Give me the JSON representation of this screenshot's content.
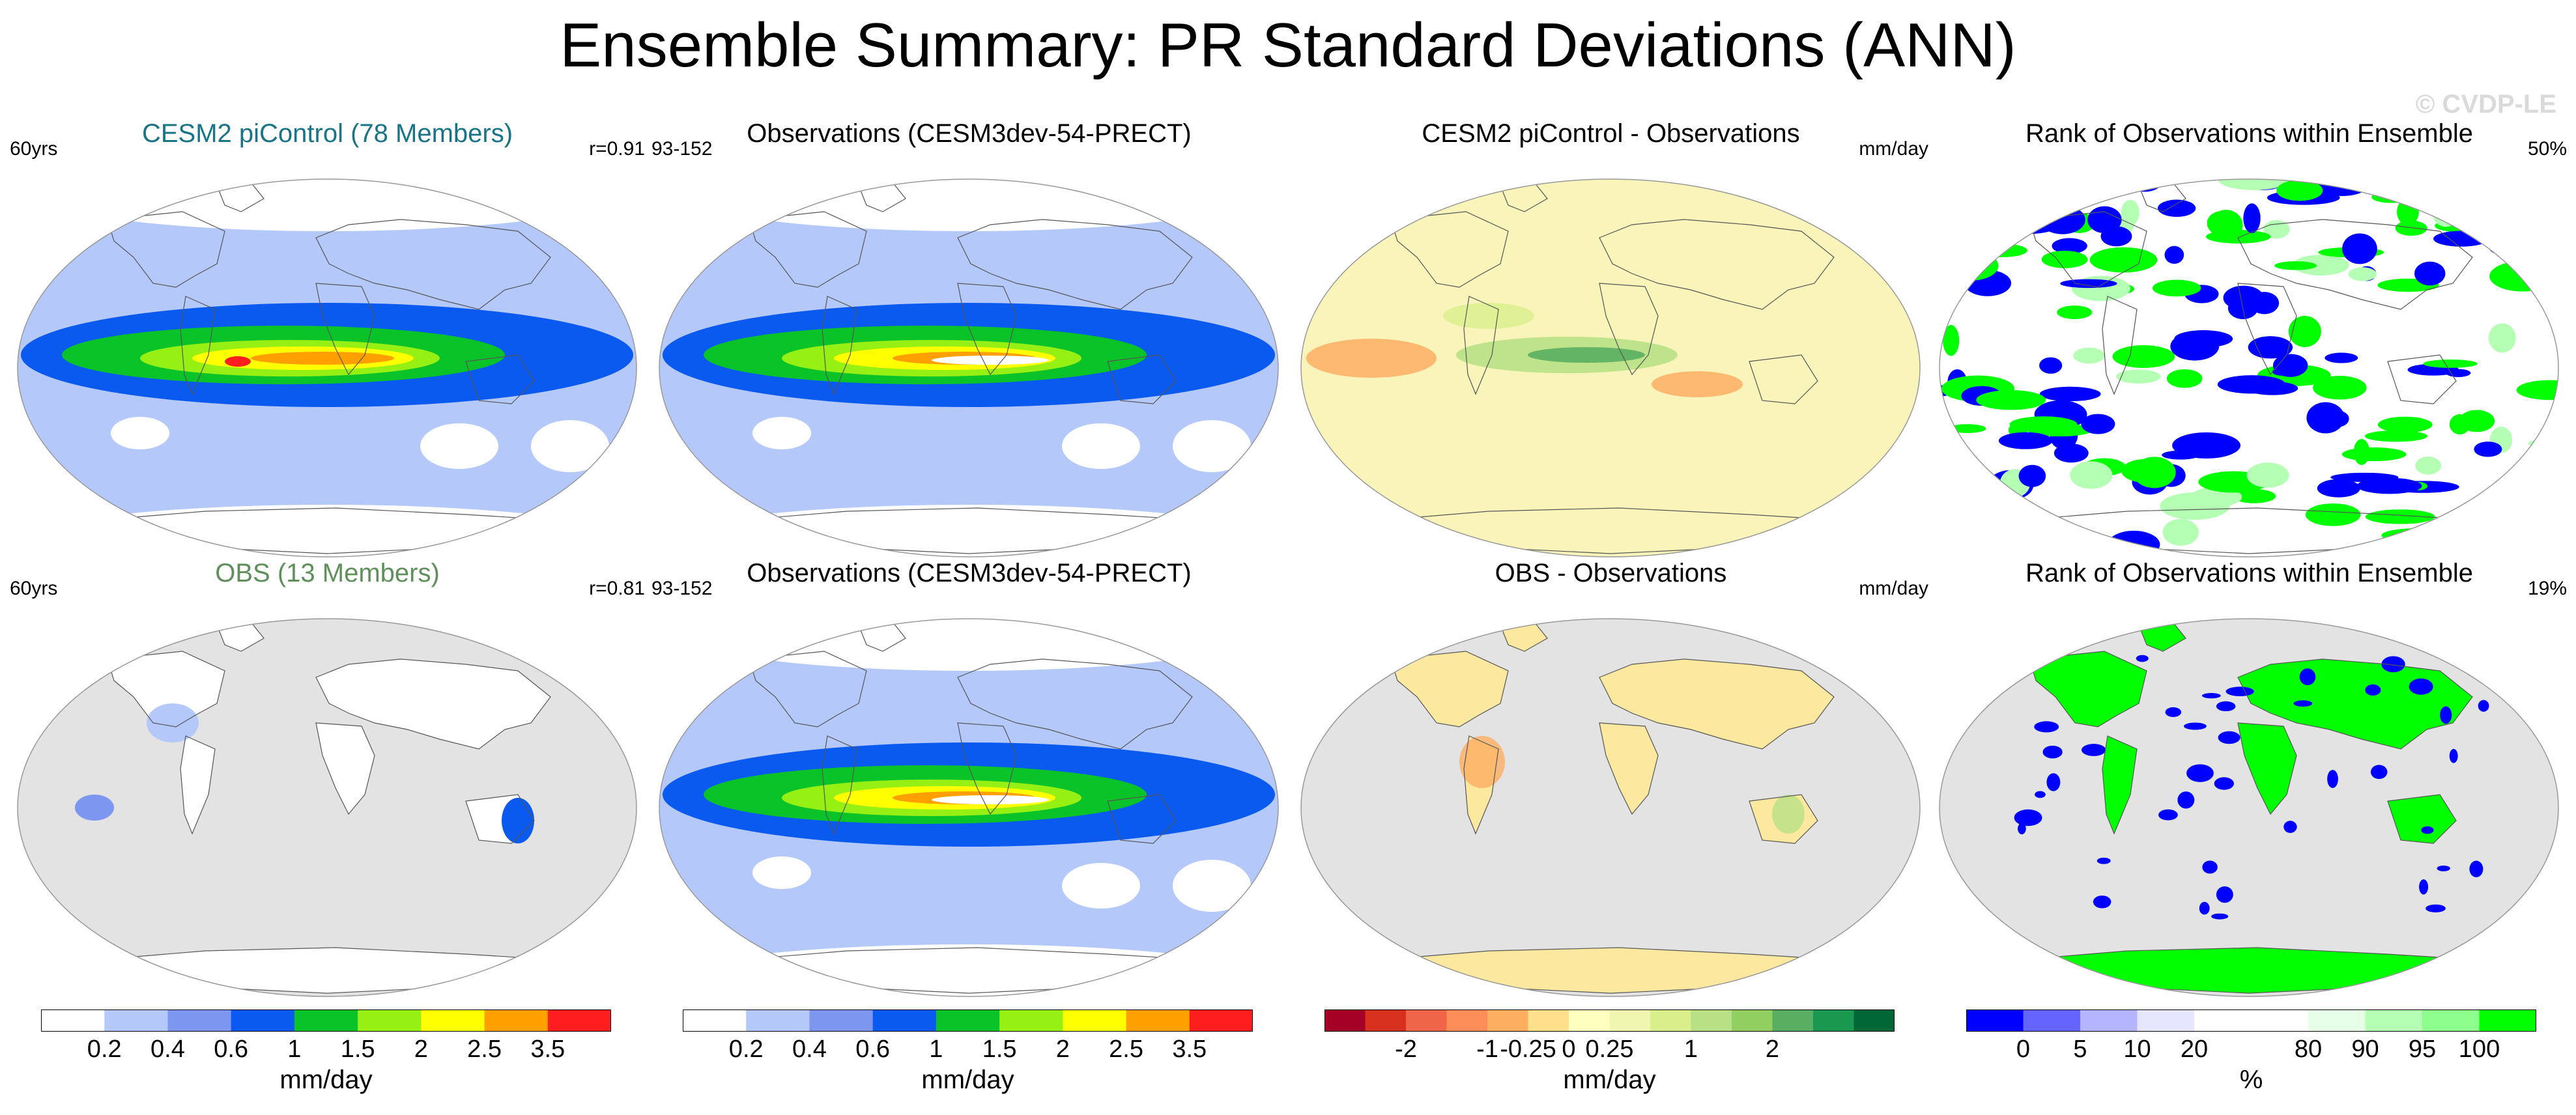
{
  "title": "Ensemble Summary: PR Standard Deviations (ANN)",
  "watermark": "© CVDP-LE",
  "panels": [
    {
      "id": "p1",
      "title": "CESM2 piControl (78 Members)",
      "title_color": "#1a7488",
      "left_label": "60yrs",
      "right_label": "r=0.91",
      "kind": "std_full"
    },
    {
      "id": "p2",
      "title": "Observations (CESM3dev-54-PRECT)",
      "title_color": "#000000",
      "left_label": "93-152",
      "right_label": "",
      "kind": "std_full"
    },
    {
      "id": "p3",
      "title": "CESM2 piControl - Observations",
      "title_color": "#000000",
      "left_label": "",
      "right_label": "mm/day",
      "kind": "diff_full"
    },
    {
      "id": "p4",
      "title": "Rank of Observations within Ensemble",
      "title_color": "#000000",
      "left_label": "",
      "right_label": "50%",
      "kind": "rank_full"
    },
    {
      "id": "p5",
      "title": "OBS (13 Members)",
      "title_color": "#5f8f5a",
      "left_label": "60yrs",
      "right_label": "r=0.81",
      "kind": "std_land"
    },
    {
      "id": "p6",
      "title": "Observations (CESM3dev-54-PRECT)",
      "title_color": "#000000",
      "left_label": "93-152",
      "right_label": "",
      "kind": "std_full"
    },
    {
      "id": "p7",
      "title": "OBS - Observations",
      "title_color": "#000000",
      "left_label": "",
      "right_label": "mm/day",
      "kind": "diff_land"
    },
    {
      "id": "p8",
      "title": "Rank of Observations within Ensemble",
      "title_color": "#000000",
      "left_label": "",
      "right_label": "19%",
      "kind": "rank_land"
    }
  ],
  "colorbars": [
    {
      "id": "cb1",
      "units": "mm/day",
      "colors": [
        "#ffffff",
        "#b4c8fa",
        "#7d96f0",
        "#0a5af0",
        "#0ac328",
        "#96f014",
        "#ffff00",
        "#ffa000",
        "#ff1e1e"
      ],
      "labels": [
        "0.2",
        "0.4",
        "0.6",
        "1",
        "1.5",
        "2",
        "2.5",
        "3.5"
      ]
    },
    {
      "id": "cb2",
      "units": "mm/day",
      "colors": [
        "#ffffff",
        "#b4c8fa",
        "#7d96f0",
        "#0a5af0",
        "#0ac328",
        "#96f014",
        "#ffff00",
        "#ffa000",
        "#ff1e1e"
      ],
      "labels": [
        "0.2",
        "0.4",
        "0.6",
        "1",
        "1.5",
        "2",
        "2.5",
        "3.5"
      ]
    },
    {
      "id": "cb3",
      "units": "mm/day",
      "colors": [
        "#a50026",
        "#d7301f",
        "#ef6548",
        "#fc8d59",
        "#fdae61",
        "#fee08b",
        "#ffffbf",
        "#f0f5b0",
        "#d9ef8b",
        "#b8e186",
        "#91cf60",
        "#5aae61",
        "#1a9850",
        "#006837"
      ],
      "labels": [
        "-2",
        "-1",
        "-0.25",
        "0",
        "0.25",
        "1",
        "2"
      ],
      "label_slots": [
        2,
        4,
        5,
        6,
        7,
        9,
        11
      ]
    },
    {
      "id": "cb4",
      "units": "%",
      "colors": [
        "#0000ff",
        "#6464ff",
        "#b4b4ff",
        "#e6e6ff",
        "#ffffff",
        "#ffffff",
        "#e6ffe6",
        "#b4ffb4",
        "#8cff8c",
        "#00ff00"
      ],
      "labels": [
        "0",
        "5",
        "10",
        "20",
        "80",
        "90",
        "95",
        "100"
      ],
      "label_slots": [
        1,
        2,
        3,
        4,
        6,
        7,
        8,
        9
      ]
    }
  ]
}
